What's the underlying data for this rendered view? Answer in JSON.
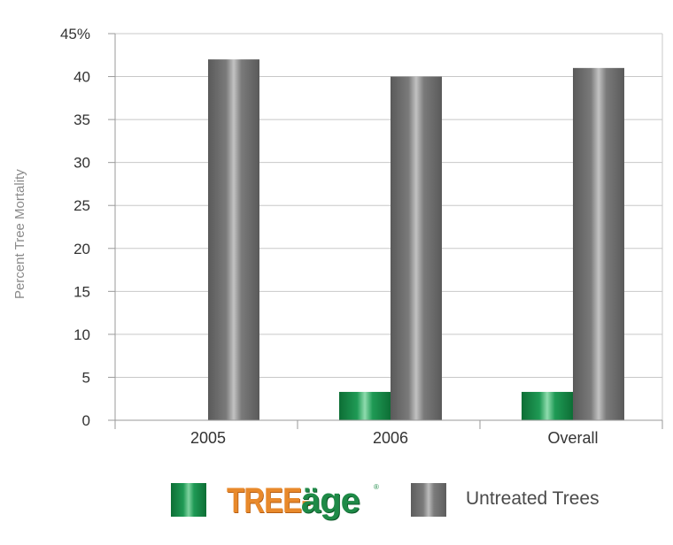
{
  "chart_data": {
    "type": "bar",
    "categories": [
      "2005",
      "2006",
      "Overall"
    ],
    "series": [
      {
        "name": "TREE-äge",
        "color": "#1f9a55",
        "values": [
          0,
          3.3,
          3.3
        ]
      },
      {
        "name": "Untreated Trees",
        "color": "#7c7c7c",
        "values": [
          42,
          40,
          41
        ]
      }
    ],
    "ylabel": "Percent Tree Mortality",
    "xlabel": "",
    "ylim": [
      0,
      45
    ],
    "yticks": [
      "0",
      "5",
      "10",
      "15",
      "20",
      "25",
      "30",
      "35",
      "40",
      "45%"
    ],
    "grid": true,
    "legend_position": "bottom"
  },
  "legend": {
    "brand_tree": "TREE-",
    "brand_age": "äge",
    "brand_reg": "®",
    "untreated_label": "Untreated Trees"
  },
  "colors": {
    "treated": "#1f9a55",
    "untreated": "#7c7c7c",
    "brand_orange": "#e8892b",
    "brand_green": "#1e8a47"
  }
}
